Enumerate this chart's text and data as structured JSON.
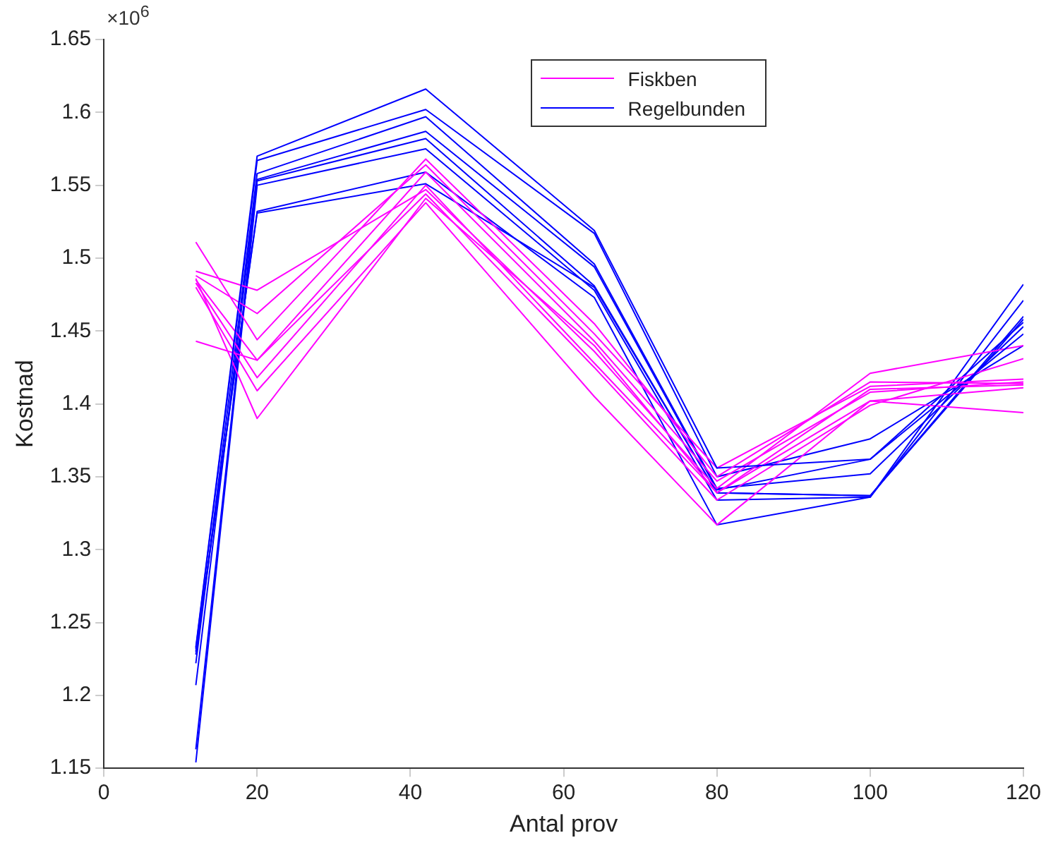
{
  "chart_data": {
    "type": "line",
    "xlabel": "Antal prov",
    "ylabel": "Kostnad",
    "annotations": [
      "×10$^{6}$"
    ],
    "x": [
      12,
      20,
      42,
      64,
      80,
      100,
      120
    ],
    "xlim": [
      0,
      120
    ],
    "xticks": [
      0,
      20,
      40,
      60,
      80,
      100,
      120
    ],
    "ylim": [
      1.15,
      1.65
    ],
    "yticks": [
      1.15,
      1.2,
      1.25,
      1.3,
      1.35,
      1.4,
      1.45,
      1.5,
      1.55,
      1.6,
      1.65
    ],
    "grid": false,
    "legend": "top",
    "marker": "none",
    "line_style": "solid",
    "series": [
      {
        "name": "Fiskben",
        "color": "#ff00ff",
        "values": [
          1.511,
          1.444,
          1.568,
          1.455,
          1.35,
          1.415,
          1.414
        ]
      },
      {
        "name": "Regelbunden",
        "color": "#0000ff",
        "values": [
          1.233,
          1.57,
          1.616,
          1.519,
          1.356,
          1.362,
          1.448
        ]
      },
      {
        "color": "#ff00ff",
        "values": [
          1.491,
          1.478,
          1.547,
          1.436,
          1.342,
          1.421,
          1.44
        ]
      },
      {
        "color": "#ff00ff",
        "values": [
          1.488,
          1.462,
          1.564,
          1.448,
          1.356,
          1.412,
          1.417
        ]
      },
      {
        "color": "#ff00ff",
        "values": [
          1.485,
          1.43,
          1.559,
          1.443,
          1.347,
          1.408,
          1.415
        ]
      },
      {
        "color": "#ff00ff",
        "values": [
          1.483,
          1.418,
          1.55,
          1.428,
          1.339,
          1.402,
          1.411
        ]
      },
      {
        "color": "#ff00ff",
        "values": [
          1.443,
          1.43,
          1.544,
          1.425,
          1.334,
          1.399,
          1.431
        ]
      },
      {
        "color": "#ff00ff",
        "values": [
          1.48,
          1.409,
          1.538,
          1.405,
          1.317,
          1.402,
          1.394
        ]
      },
      {
        "color": "#ff00ff",
        "values": [
          1.486,
          1.39,
          1.541,
          1.44,
          1.339,
          1.41,
          1.413
        ]
      },
      {
        "color": "#0000ff",
        "values": [
          1.232,
          1.567,
          1.602,
          1.517,
          1.35,
          1.376,
          1.44
        ]
      },
      {
        "color": "#0000ff",
        "values": [
          1.222,
          1.558,
          1.597,
          1.496,
          1.342,
          1.352,
          1.453
        ]
      },
      {
        "color": "#0000ff",
        "values": [
          1.207,
          1.554,
          1.587,
          1.494,
          1.341,
          1.362,
          1.456
        ]
      },
      {
        "color": "#0000ff",
        "values": [
          1.163,
          1.553,
          1.582,
          1.481,
          1.339,
          1.337,
          1.46
        ]
      },
      {
        "color": "#0000ff",
        "values": [
          1.154,
          1.55,
          1.575,
          1.478,
          1.334,
          1.336,
          1.471
        ]
      },
      {
        "color": "#0000ff",
        "values": [
          1.228,
          1.532,
          1.559,
          1.473,
          1.317,
          1.336,
          1.482
        ]
      },
      {
        "color": "#0000ff",
        "values": [
          1.23,
          1.531,
          1.551,
          1.48,
          1.339,
          1.337,
          1.458
        ]
      }
    ]
  }
}
